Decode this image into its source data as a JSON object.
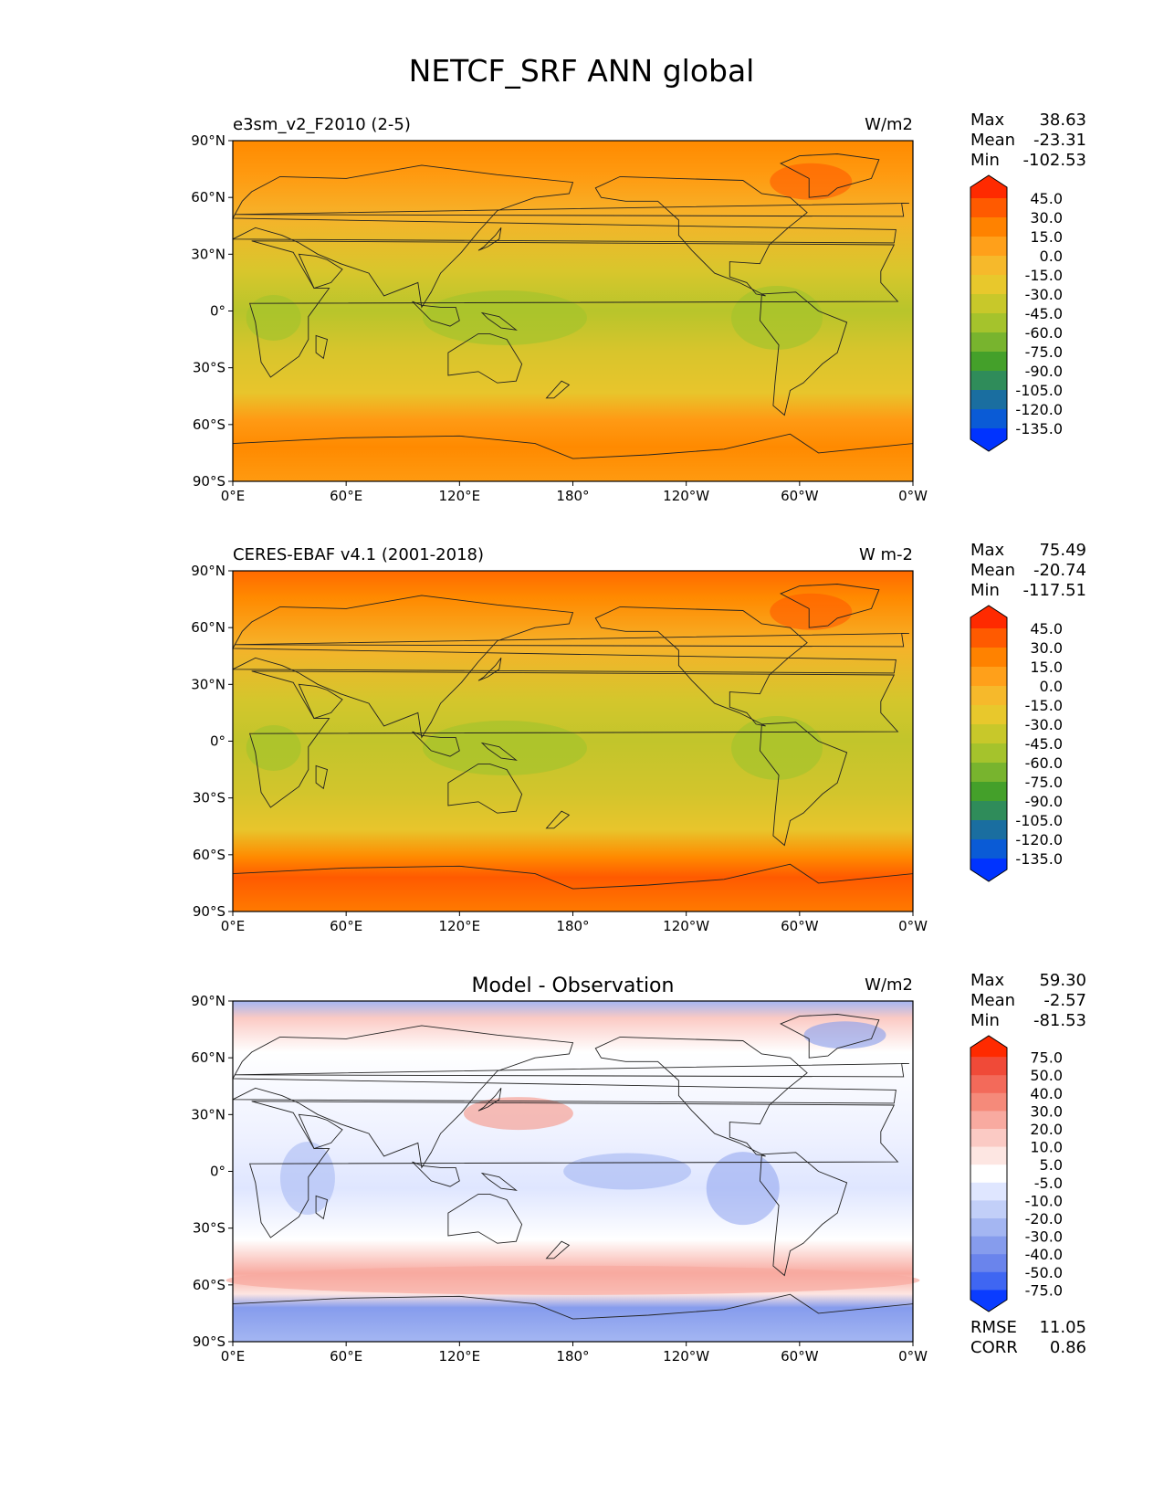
{
  "figure_title": "NETCF_SRF ANN global",
  "colors": {
    "frame": "#000000",
    "land_outline": "#222222"
  },
  "lat_ticks": [
    "90°N",
    "60°N",
    "30°N",
    "0°",
    "30°S",
    "60°S",
    "90°S"
  ],
  "lon_ticks": [
    "0°E",
    "60°E",
    "120°E",
    "180°",
    "120°W",
    "60°W",
    "0°W"
  ],
  "panels": [
    {
      "title_left": "e3sm_v2_F2010 (2-5)",
      "title_center": "",
      "title_right": "W/m2",
      "stats": {
        "max_label": "Max",
        "max_value": "38.63",
        "mean_label": "Mean",
        "mean_value": "-23.31",
        "min_label": "Min",
        "min_value": "-102.53"
      },
      "colorbar": {
        "labels": [
          "45.0",
          "30.0",
          "15.0",
          "0.0",
          "-15.0",
          "-30.0",
          "-45.0",
          "-60.0",
          "-75.0",
          "-90.0",
          "-105.0",
          "-120.0",
          "-135.0"
        ],
        "colors": [
          "#ff2a00",
          "#ff5a00",
          "#ff8200",
          "#ffa01a",
          "#f6b92b",
          "#e8c82c",
          "#c8c82a",
          "#a5c32c",
          "#78b42e",
          "#44a02a",
          "#2f8c5a",
          "#1a6ea0",
          "#0a5bd6",
          "#0033ff"
        ]
      }
    },
    {
      "title_left": "CERES-EBAF v4.1 (2001-2018)",
      "title_center": "",
      "title_right": "W m-2",
      "stats": {
        "max_label": "Max",
        "max_value": "75.49",
        "mean_label": "Mean",
        "mean_value": "-20.74",
        "min_label": "Min",
        "min_value": "-117.51"
      },
      "colorbar": {
        "labels": [
          "45.0",
          "30.0",
          "15.0",
          "0.0",
          "-15.0",
          "-30.0",
          "-45.0",
          "-60.0",
          "-75.0",
          "-90.0",
          "-105.0",
          "-120.0",
          "-135.0"
        ],
        "colors": [
          "#ff2a00",
          "#ff5a00",
          "#ff8200",
          "#ffa01a",
          "#f6b92b",
          "#e8c82c",
          "#c8c82a",
          "#a5c32c",
          "#78b42e",
          "#44a02a",
          "#2f8c5a",
          "#1a6ea0",
          "#0a5bd6",
          "#0033ff"
        ]
      }
    },
    {
      "title_left": "",
      "title_center": "Model - Observation",
      "title_right": "W/m2",
      "stats": {
        "max_label": "Max",
        "max_value": "59.30",
        "mean_label": "Mean",
        "mean_value": "-2.57",
        "min_label": "Min",
        "min_value": "-81.53"
      },
      "extra_stats": {
        "rmse_label": "RMSE",
        "rmse_value": "11.05",
        "corr_label": "CORR",
        "corr_value": "0.86"
      },
      "colorbar": {
        "labels": [
          "75.0",
          "50.0",
          "40.0",
          "30.0",
          "20.0",
          "10.0",
          "5.0",
          "-5.0",
          "-10.0",
          "-20.0",
          "-30.0",
          "-40.0",
          "-50.0",
          "-75.0"
        ],
        "colors": [
          "#ff2a00",
          "#f04a38",
          "#f36a5a",
          "#f58a7a",
          "#f8aaa0",
          "#fbcac4",
          "#fde6e2",
          "#ffffff",
          "#dfe6ff",
          "#c2cff8",
          "#a4b6f2",
          "#869ced",
          "#6a84ec",
          "#3f66f2",
          "#0a3cff"
        ]
      }
    }
  ]
}
